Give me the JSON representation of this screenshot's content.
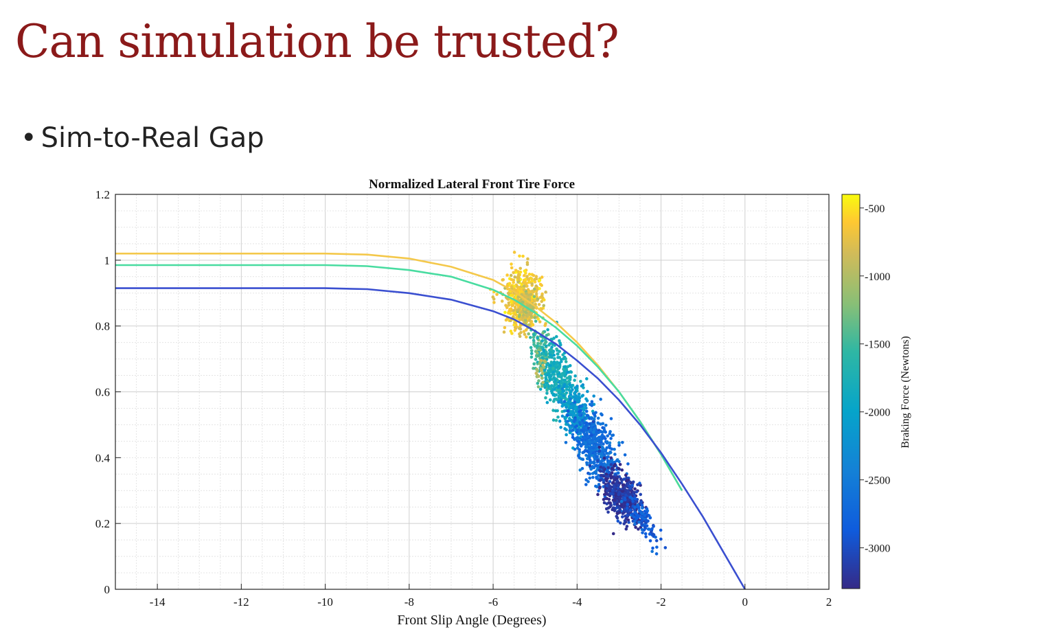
{
  "slide": {
    "title": "Can simulation be trusted?",
    "bullet": "Sim-to-Real Gap"
  },
  "chart_data": {
    "type": "scatter",
    "title": "Normalized Lateral Front Tire Force",
    "xlabel": "Front Slip Angle (Degrees)",
    "ylabel": "",
    "xlim": [
      -15,
      2
    ],
    "ylim": [
      0,
      1.2
    ],
    "xticks": [
      -14,
      -12,
      -10,
      -8,
      -6,
      -4,
      -2,
      0,
      2
    ],
    "yticks": [
      0,
      0.2,
      0.4,
      0.6,
      0.8,
      1,
      1.2
    ],
    "grid": true,
    "minor_grid": true,
    "colorbar": {
      "label": "Braking Force (Newtons)",
      "range": [
        -3300,
        -400
      ],
      "ticks": [
        -500,
        -1000,
        -1500,
        -2000,
        -2500,
        -3000
      ],
      "colormap": "parula"
    },
    "curves": [
      {
        "color": "#f4c84a",
        "braking": -700,
        "x": [
          -15,
          -10,
          -9,
          -8,
          -7,
          -6,
          -5.5,
          -5,
          -4.5,
          -4,
          -3.5,
          -3,
          -2.5,
          -2,
          -1.5
        ],
        "y": [
          1.02,
          1.02,
          1.017,
          1.005,
          0.98,
          0.94,
          0.905,
          0.86,
          0.81,
          0.75,
          0.68,
          0.6,
          0.51,
          0.41,
          0.3
        ]
      },
      {
        "color": "#48dca0",
        "braking": -1800,
        "x": [
          -15,
          -10,
          -9,
          -8,
          -7,
          -6,
          -5.5,
          -5,
          -4.5,
          -4,
          -3.5,
          -3,
          -2.5,
          -2,
          -1.5
        ],
        "y": [
          0.985,
          0.985,
          0.982,
          0.97,
          0.95,
          0.91,
          0.88,
          0.84,
          0.795,
          0.74,
          0.675,
          0.6,
          0.51,
          0.41,
          0.3
        ]
      },
      {
        "color": "#3a4fd0",
        "braking": -3000,
        "x": [
          -15,
          -10,
          -9,
          -8,
          -7,
          -6,
          -5.5,
          -5,
          -4.5,
          -4,
          -3.5,
          -3,
          -2.5,
          -2,
          -1.5,
          -1,
          -0.5,
          0
        ],
        "y": [
          0.915,
          0.915,
          0.912,
          0.9,
          0.88,
          0.845,
          0.82,
          0.785,
          0.745,
          0.695,
          0.64,
          0.575,
          0.5,
          0.415,
          0.32,
          0.22,
          0.11,
          0
        ]
      }
    ],
    "clusters": [
      {
        "cx": -5.3,
        "cy": 0.88,
        "sx": 0.22,
        "sy": 0.045,
        "n": 520,
        "braking": -650,
        "tilt": 0
      },
      {
        "cx": -5.2,
        "cy": 0.86,
        "sx": 0.12,
        "sy": 0.03,
        "n": 110,
        "braking": -950,
        "tilt": 0
      },
      {
        "cx": -4.85,
        "cy": 0.72,
        "sx": 0.14,
        "sy": 0.035,
        "n": 120,
        "braking": -1450,
        "tilt": -0.08
      },
      {
        "cx": -4.45,
        "cy": 0.64,
        "sx": 0.2,
        "sy": 0.05,
        "n": 360,
        "braking": -1800,
        "tilt": -0.12
      },
      {
        "cx": -4.0,
        "cy": 0.53,
        "sx": 0.18,
        "sy": 0.04,
        "n": 230,
        "braking": -2150,
        "tilt": -0.1
      },
      {
        "cx": -3.55,
        "cy": 0.43,
        "sx": 0.27,
        "sy": 0.05,
        "n": 500,
        "braking": -2650,
        "tilt": -0.12
      },
      {
        "cx": -2.95,
        "cy": 0.285,
        "sx": 0.25,
        "sy": 0.035,
        "n": 460,
        "braking": -3200,
        "tilt": -0.08
      },
      {
        "cx": -2.45,
        "cy": 0.215,
        "sx": 0.2,
        "sy": 0.025,
        "n": 110,
        "braking": -2850,
        "tilt": -0.15
      },
      {
        "cx": -4.9,
        "cy": 0.66,
        "sx": 0.06,
        "sy": 0.025,
        "n": 25,
        "braking": -1100,
        "tilt": 0
      }
    ]
  }
}
